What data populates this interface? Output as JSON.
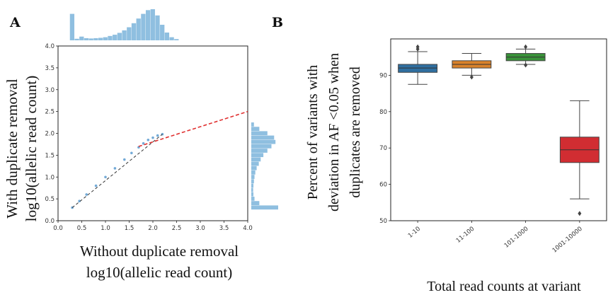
{
  "panels": {
    "a": {
      "letter": "A"
    },
    "b": {
      "letter": "B"
    }
  },
  "colors": {
    "histogram": "#8fbfe0",
    "scatter": "#5b9bd0",
    "fit_line": "#e03030",
    "box_1": "#2f6fa0",
    "box_2": "#d9822b",
    "box_3": "#3a923a",
    "box_4": "#d12d32"
  },
  "chart_data": [
    {
      "type": "scatter",
      "panel": "A",
      "title": "",
      "xlabel_lines": [
        "Without duplicate removal",
        "log10(allelic read count)"
      ],
      "ylabel_lines": [
        "With duplicate removal",
        "log10(allelic read count)"
      ],
      "xlim": [
        0.0,
        4.0
      ],
      "ylim": [
        0.0,
        4.0
      ],
      "xticks": [
        "0.0",
        "0.5",
        "1.0",
        "1.5",
        "2.0",
        "2.5",
        "3.0",
        "3.5",
        "4.0"
      ],
      "yticks": [
        "0.0",
        "0.5",
        "1.0",
        "1.5",
        "2.0",
        "2.5",
        "3.0",
        "3.5",
        "4.0"
      ],
      "grid": false,
      "points": [
        {
          "x": 0.3,
          "y": 0.3
        },
        {
          "x": 0.45,
          "y": 0.45
        },
        {
          "x": 0.6,
          "y": 0.6
        },
        {
          "x": 0.8,
          "y": 0.8
        },
        {
          "x": 1.0,
          "y": 1.0
        },
        {
          "x": 1.2,
          "y": 1.2
        },
        {
          "x": 1.4,
          "y": 1.4
        },
        {
          "x": 1.55,
          "y": 1.55
        },
        {
          "x": 1.7,
          "y": 1.68
        },
        {
          "x": 1.8,
          "y": 1.77
        },
        {
          "x": 1.9,
          "y": 1.85
        },
        {
          "x": 2.0,
          "y": 1.9
        },
        {
          "x": 2.1,
          "y": 1.95
        },
        {
          "x": 2.2,
          "y": 1.98
        }
      ],
      "fit_line": {
        "x": [
          1.7,
          4.0
        ],
        "y": [
          1.7,
          2.5
        ]
      },
      "top_histogram": {
        "bin_centers": [
          0.3,
          0.4,
          0.5,
          0.6,
          0.7,
          0.8,
          0.9,
          1.0,
          1.1,
          1.2,
          1.3,
          1.4,
          1.5,
          1.6,
          1.7,
          1.8,
          1.9,
          2.0,
          2.1,
          2.2,
          2.3,
          2.4,
          2.5
        ],
        "counts": [
          0.85,
          0.05,
          0.12,
          0.07,
          0.06,
          0.07,
          0.08,
          0.1,
          0.14,
          0.18,
          0.24,
          0.32,
          0.42,
          0.55,
          0.7,
          0.85,
          0.97,
          1.0,
          0.8,
          0.5,
          0.25,
          0.1,
          0.04
        ]
      },
      "right_histogram": {
        "bin_centers": [
          0.3,
          0.4,
          0.5,
          0.6,
          0.7,
          0.8,
          0.9,
          1.0,
          1.1,
          1.2,
          1.3,
          1.4,
          1.5,
          1.6,
          1.7,
          1.8,
          1.9,
          2.0,
          2.1,
          2.2
        ],
        "counts": [
          1.0,
          0.3,
          0.12,
          0.08,
          0.07,
          0.08,
          0.1,
          0.12,
          0.15,
          0.2,
          0.28,
          0.35,
          0.45,
          0.6,
          0.75,
          0.9,
          0.85,
          0.6,
          0.3,
          0.1
        ]
      }
    },
    {
      "type": "box",
      "panel": "B",
      "title": "",
      "xlabel": "Total read counts at variant",
      "ylabel_lines": [
        "Percent of variants with",
        "deviation in AF <0.05 when",
        "duplicates are removed"
      ],
      "ylim": [
        50,
        100
      ],
      "yticks": [
        "50",
        "60",
        "70",
        "80",
        "90"
      ],
      "categories": [
        "1-10",
        "11-100",
        "101-1000",
        "1001-10000"
      ],
      "boxes": [
        {
          "category": "1-10",
          "whisker_low": 87.5,
          "q1": 90.8,
          "median": 92.0,
          "q3": 93.0,
          "whisker_high": 96.5,
          "outliers": [
            97.2,
            97.8
          ]
        },
        {
          "category": "11-100",
          "whisker_low": 90.0,
          "q1": 92.0,
          "median": 93.0,
          "q3": 94.0,
          "whisker_high": 96.0,
          "outliers": [
            89.5
          ]
        },
        {
          "category": "101-1000",
          "whisker_low": 93.0,
          "q1": 94.0,
          "median": 95.0,
          "q3": 96.0,
          "whisker_high": 97.2,
          "outliers": [
            97.8,
            92.8
          ]
        },
        {
          "category": "1001-10000",
          "whisker_low": 56.0,
          "q1": 66.0,
          "median": 69.5,
          "q3": 73.0,
          "whisker_high": 83.0,
          "outliers": [
            52.0
          ]
        }
      ]
    }
  ]
}
